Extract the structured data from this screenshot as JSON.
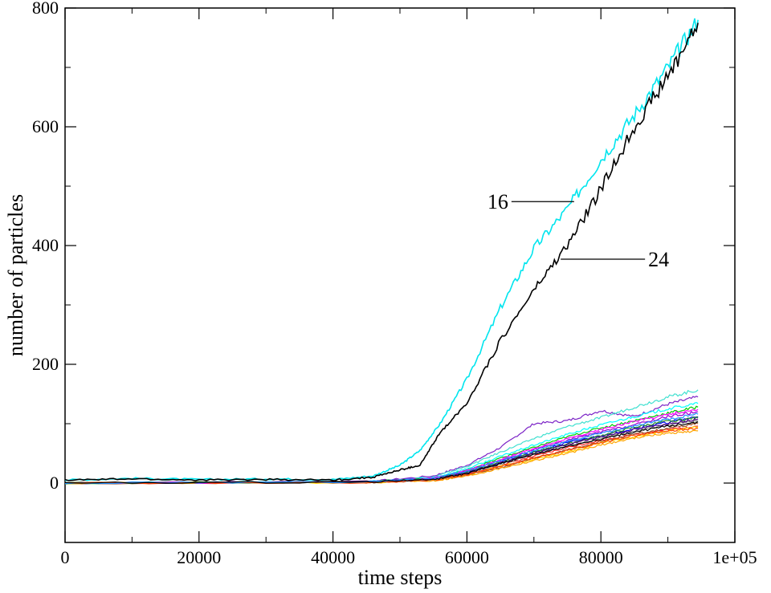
{
  "chart_data": {
    "type": "line",
    "xlabel": "time steps",
    "ylabel": "number of particles",
    "xlim": [
      0,
      100000
    ],
    "ylim": [
      -100,
      800
    ],
    "x_ticks": [
      {
        "value": 0,
        "label": "0"
      },
      {
        "value": 20000,
        "label": "20000"
      },
      {
        "value": 40000,
        "label": "40000"
      },
      {
        "value": 60000,
        "label": "60000"
      },
      {
        "value": 80000,
        "label": "80000"
      },
      {
        "value": 100000,
        "label": "1e+05"
      }
    ],
    "y_ticks": [
      {
        "value": 0,
        "label": "0"
      },
      {
        "value": 200,
        "label": "200"
      },
      {
        "value": 400,
        "label": "400"
      },
      {
        "value": 600,
        "label": "600"
      },
      {
        "value": 800,
        "label": "800"
      }
    ],
    "grid": false,
    "annotations": [
      {
        "text": "16",
        "target_x": 76000,
        "target_y": 474
      },
      {
        "text": "24",
        "target_x": 74000,
        "target_y": 377
      }
    ],
    "series": [
      {
        "color": "#00e5ee",
        "highlight": true,
        "x": [
          0,
          10000,
          20000,
          30000,
          40000,
          46000,
          50000,
          53000,
          56000,
          60000,
          65000,
          70000,
          75000,
          80000,
          85000,
          90000,
          94500
        ],
        "y": [
          5,
          8,
          6,
          7,
          6,
          12,
          30,
          55,
          100,
          175,
          295,
          395,
          462,
          545,
          620,
          700,
          780
        ]
      },
      {
        "color": "#000000",
        "highlight": true,
        "x": [
          0,
          10000,
          20000,
          30000,
          40000,
          46000,
          50000,
          53000,
          56000,
          60000,
          65000,
          70000,
          75000,
          80000,
          85000,
          90000,
          94500
        ],
        "y": [
          5,
          7,
          5,
          6,
          5,
          10,
          22,
          30,
          85,
          135,
          240,
          325,
          400,
          495,
          600,
          685,
          775
        ]
      },
      {
        "color": "#7b22c6",
        "x": [
          0,
          45000,
          55000,
          60000,
          65000,
          70000,
          75000,
          80000,
          85000,
          90000,
          94500
        ],
        "y": [
          0,
          2,
          12,
          30,
          60,
          100,
          105,
          122,
          112,
          133,
          145
        ]
      },
      {
        "color": "#40e0d0",
        "x": [
          0,
          45000,
          55000,
          60000,
          65000,
          70000,
          75000,
          80000,
          85000,
          90000,
          94500
        ],
        "y": [
          0,
          2,
          10,
          28,
          52,
          75,
          95,
          110,
          128,
          145,
          157
        ]
      },
      {
        "color": "#ff2222",
        "x": [
          0,
          45000,
          55000,
          60000,
          65000,
          70000,
          75000,
          80000,
          85000,
          90000,
          94500
        ],
        "y": [
          0,
          2,
          6,
          15,
          30,
          45,
          60,
          72,
          82,
          90,
          96
        ]
      },
      {
        "color": "#00cc00",
        "x": [
          0,
          45000,
          55000,
          60000,
          65000,
          70000,
          75000,
          80000,
          85000,
          90000,
          94500
        ],
        "y": [
          0,
          2,
          8,
          22,
          42,
          60,
          78,
          93,
          105,
          118,
          128
        ]
      },
      {
        "color": "#0000ff",
        "x": [
          0,
          45000,
          55000,
          60000,
          65000,
          70000,
          75000,
          80000,
          85000,
          90000,
          94500
        ],
        "y": [
          0,
          2,
          7,
          18,
          36,
          52,
          68,
          80,
          92,
          102,
          112
        ]
      },
      {
        "color": "#ffd700",
        "x": [
          0,
          45000,
          55000,
          60000,
          65000,
          70000,
          75000,
          80000,
          85000,
          90000,
          94500
        ],
        "y": [
          0,
          1,
          5,
          14,
          28,
          40,
          52,
          68,
          78,
          88,
          94
        ]
      },
      {
        "color": "#a0522d",
        "x": [
          0,
          45000,
          55000,
          60000,
          65000,
          70000,
          75000,
          80000,
          85000,
          90000,
          94500
        ],
        "y": [
          0,
          1,
          5,
          13,
          26,
          42,
          56,
          70,
          82,
          92,
          100
        ]
      },
      {
        "color": "#808080",
        "x": [
          0,
          45000,
          55000,
          60000,
          65000,
          70000,
          75000,
          80000,
          85000,
          90000,
          94500
        ],
        "y": [
          0,
          1,
          6,
          16,
          32,
          48,
          62,
          76,
          88,
          98,
          105
        ]
      },
      {
        "color": "#9400d3",
        "x": [
          0,
          45000,
          55000,
          60000,
          65000,
          70000,
          75000,
          80000,
          85000,
          90000,
          94500
        ],
        "y": [
          0,
          2,
          8,
          20,
          38,
          56,
          72,
          86,
          98,
          112,
          120
        ]
      },
      {
        "color": "#00ffff",
        "x": [
          0,
          45000,
          55000,
          60000,
          65000,
          70000,
          75000,
          80000,
          85000,
          90000,
          94500
        ],
        "y": [
          0,
          2,
          9,
          24,
          45,
          64,
          82,
          98,
          112,
          125,
          134
        ]
      },
      {
        "color": "#ff00ff",
        "x": [
          0,
          45000,
          55000,
          60000,
          65000,
          70000,
          75000,
          80000,
          85000,
          90000,
          94500
        ],
        "y": [
          0,
          2,
          8,
          21,
          40,
          58,
          75,
          90,
          104,
          116,
          124
        ]
      },
      {
        "color": "#ffa500",
        "x": [
          0,
          45000,
          55000,
          60000,
          65000,
          70000,
          75000,
          80000,
          85000,
          90000,
          94500
        ],
        "y": [
          0,
          1,
          4,
          12,
          25,
          38,
          50,
          64,
          76,
          84,
          88
        ]
      },
      {
        "color": "#228b22",
        "x": [
          0,
          45000,
          55000,
          60000,
          65000,
          70000,
          75000,
          80000,
          85000,
          90000,
          94500
        ],
        "y": [
          0,
          2,
          7,
          19,
          35,
          52,
          66,
          80,
          94,
          104,
          110
        ]
      },
      {
        "color": "#4b0082",
        "x": [
          0,
          45000,
          55000,
          60000,
          65000,
          70000,
          75000,
          80000,
          85000,
          90000,
          94500
        ],
        "y": [
          0,
          2,
          7,
          17,
          34,
          50,
          65,
          78,
          90,
          100,
          108
        ]
      },
      {
        "color": "#ff4500",
        "x": [
          0,
          45000,
          55000,
          60000,
          65000,
          70000,
          75000,
          80000,
          85000,
          90000,
          94500
        ],
        "y": [
          0,
          1,
          5,
          14,
          28,
          42,
          55,
          68,
          80,
          88,
          92
        ]
      },
      {
        "color": "#1e90ff",
        "x": [
          0,
          45000,
          55000,
          60000,
          65000,
          70000,
          75000,
          80000,
          85000,
          90000,
          94500
        ],
        "y": [
          0,
          2,
          8,
          20,
          38,
          55,
          70,
          84,
          96,
          108,
          116
        ]
      },
      {
        "color": "#000000",
        "x": [
          0,
          45000,
          55000,
          60000,
          65000,
          70000,
          75000,
          80000,
          85000,
          90000,
          94500
        ],
        "y": [
          0,
          2,
          6,
          16,
          33,
          48,
          62,
          74,
          86,
          96,
          103
        ]
      }
    ]
  }
}
